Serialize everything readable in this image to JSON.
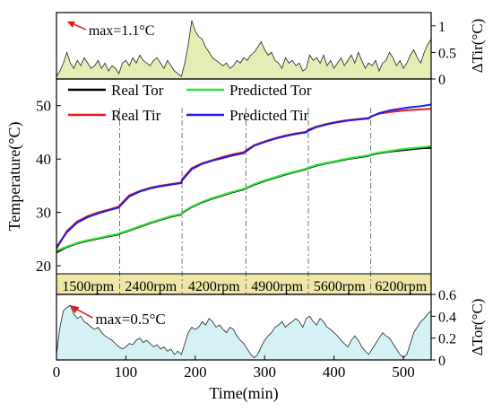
{
  "chart_data": [
    {
      "type": "area",
      "ylabel": "ΔTir(°C)",
      "ylim": [
        0,
        1.25
      ],
      "yticks": [
        0.0,
        0.5,
        1.0
      ],
      "fill_color": "#e3eeb4",
      "annotation": {
        "text": "max=1.1°C",
        "x": 14,
        "y": 1.1,
        "color": "#e0191b"
      },
      "x": [
        0,
        5,
        10,
        15,
        20,
        25,
        30,
        35,
        40,
        45,
        50,
        55,
        60,
        65,
        70,
        75,
        80,
        85,
        90,
        95,
        100,
        105,
        110,
        115,
        120,
        125,
        130,
        135,
        140,
        145,
        150,
        155,
        160,
        165,
        170,
        175,
        180,
        185,
        190,
        195,
        200,
        205,
        210,
        215,
        220,
        225,
        230,
        235,
        240,
        245,
        250,
        255,
        260,
        265,
        270,
        275,
        280,
        285,
        290,
        295,
        300,
        305,
        310,
        315,
        320,
        325,
        330,
        335,
        340,
        345,
        350,
        355,
        360,
        365,
        370,
        375,
        380,
        385,
        390,
        395,
        400,
        405,
        410,
        415,
        420,
        425,
        430,
        435,
        440,
        445,
        450,
        455,
        460,
        465,
        470,
        475,
        480,
        485,
        490,
        495,
        500,
        505,
        510,
        515,
        520,
        525,
        530,
        535,
        540
      ],
      "values": [
        0.05,
        0.15,
        0.3,
        0.5,
        0.3,
        0.2,
        0.35,
        0.25,
        0.4,
        0.3,
        0.2,
        0.25,
        0.35,
        0.2,
        0.3,
        0.15,
        0.25,
        0.2,
        0.1,
        0.3,
        0.35,
        0.25,
        0.4,
        0.3,
        0.45,
        0.35,
        0.3,
        0.25,
        0.35,
        0.4,
        0.3,
        0.2,
        0.35,
        0.25,
        0.15,
        0.1,
        0.05,
        0.3,
        0.65,
        1.1,
        0.9,
        0.8,
        0.75,
        0.6,
        0.5,
        0.4,
        0.35,
        0.3,
        0.25,
        0.3,
        0.2,
        0.25,
        0.35,
        0.3,
        0.4,
        0.35,
        0.45,
        0.5,
        0.6,
        0.7,
        0.55,
        0.45,
        0.5,
        0.35,
        0.3,
        0.2,
        0.4,
        0.3,
        0.35,
        0.25,
        0.3,
        0.15,
        0.2,
        0.45,
        0.35,
        0.4,
        0.3,
        0.45,
        0.25,
        0.35,
        0.2,
        0.3,
        0.4,
        0.25,
        0.35,
        0.45,
        0.3,
        0.5,
        0.35,
        0.2,
        0.3,
        0.25,
        0.35,
        0.15,
        0.3,
        0.35,
        0.5,
        0.4,
        0.25,
        0.35,
        0.2,
        0.3,
        0.45,
        0.55,
        0.4,
        0.3,
        0.5,
        0.65,
        0.75
      ]
    },
    {
      "type": "line",
      "xlim": [
        0,
        540
      ],
      "ylabel": "Temperature(°C)",
      "ylim": [
        18.5,
        55
      ],
      "yticks": [
        20,
        30,
        40,
        50
      ],
      "legend_placement": "top-left",
      "speed_bands": [
        "1500rpm",
        "2400rpm",
        "4200rpm",
        "4900rpm",
        "5600rpm",
        "6200rpm"
      ],
      "band_boundaries": [
        0,
        91,
        181,
        273,
        363,
        453,
        540
      ],
      "band_color": "#f0e6a6",
      "x": [
        0,
        15,
        30,
        45,
        60,
        75,
        90,
        91,
        105,
        120,
        135,
        150,
        165,
        180,
        181,
        195,
        210,
        225,
        240,
        255,
        270,
        273,
        285,
        300,
        315,
        330,
        345,
        360,
        363,
        375,
        390,
        405,
        420,
        435,
        450,
        453,
        465,
        480,
        495,
        510,
        525,
        540
      ],
      "series": [
        {
          "name": "Real Tor",
          "color": "#000000",
          "values": [
            22.5,
            23.5,
            24.2,
            24.7,
            25.1,
            25.5,
            25.9,
            26.0,
            26.6,
            27.3,
            28.0,
            28.6,
            29.2,
            29.6,
            29.9,
            31.0,
            31.9,
            32.6,
            33.2,
            33.8,
            34.3,
            34.5,
            35.2,
            35.9,
            36.5,
            37.1,
            37.6,
            38.1,
            38.3,
            38.8,
            39.2,
            39.6,
            40.0,
            40.3,
            40.6,
            40.8,
            41.1,
            41.4,
            41.6,
            41.8,
            42.0,
            42.1
          ]
        },
        {
          "name": "Predicted Tor",
          "color": "#2ee62e",
          "values": [
            22.8,
            23.6,
            24.3,
            24.8,
            25.2,
            25.6,
            26.0,
            26.1,
            26.7,
            27.4,
            28.1,
            28.7,
            29.3,
            29.7,
            30.0,
            31.1,
            32.0,
            32.7,
            33.3,
            33.9,
            34.4,
            34.6,
            35.3,
            36.0,
            36.6,
            37.2,
            37.7,
            38.2,
            38.4,
            38.9,
            39.3,
            39.7,
            40.1,
            40.4,
            40.7,
            40.9,
            41.2,
            41.5,
            41.8,
            42.0,
            42.2,
            42.4
          ]
        },
        {
          "name": "Real Tir",
          "color": "#e31a1c",
          "values": [
            23.2,
            26.5,
            28.3,
            29.3,
            30.0,
            30.5,
            31.1,
            31.3,
            33.2,
            34.0,
            34.6,
            35.0,
            35.3,
            35.6,
            36.2,
            38.3,
            39.2,
            39.8,
            40.4,
            40.9,
            41.3,
            41.6,
            42.6,
            43.3,
            43.9,
            44.4,
            44.8,
            45.1,
            45.5,
            46.1,
            46.6,
            47.0,
            47.3,
            47.5,
            47.7,
            48.0,
            48.5,
            48.8,
            49.0,
            49.2,
            49.3,
            49.4
          ]
        },
        {
          "name": "Predicted Tir",
          "color": "#1c1ce6",
          "values": [
            23.5,
            26.3,
            28.1,
            29.1,
            29.8,
            30.4,
            30.9,
            31.1,
            33.0,
            33.9,
            34.5,
            34.9,
            35.2,
            35.5,
            36.0,
            38.1,
            39.1,
            39.7,
            40.2,
            40.7,
            41.1,
            41.4,
            42.5,
            43.2,
            43.8,
            44.3,
            44.7,
            45.0,
            45.3,
            46.0,
            46.5,
            46.9,
            47.2,
            47.4,
            47.6,
            47.9,
            48.6,
            49.1,
            49.4,
            49.7,
            49.9,
            50.2
          ]
        }
      ]
    },
    {
      "type": "area",
      "xlabel": "Time(min)",
      "xlim": [
        0,
        540
      ],
      "xticks": [
        0,
        100,
        200,
        300,
        400,
        500
      ],
      "ylabel": "ΔTor(°C)",
      "ylim": [
        0,
        0.6
      ],
      "yticks": [
        0.0,
        0.2,
        0.4,
        0.6
      ],
      "fill_color": "#d4f2f6",
      "annotation": {
        "text": "max=0.5°C",
        "x": 20,
        "y": 0.5,
        "color": "#e0191b"
      },
      "x": [
        0,
        5,
        10,
        15,
        20,
        25,
        30,
        35,
        40,
        45,
        50,
        55,
        60,
        65,
        70,
        75,
        80,
        85,
        90,
        95,
        100,
        105,
        110,
        115,
        120,
        125,
        130,
        135,
        140,
        145,
        150,
        155,
        160,
        165,
        170,
        175,
        180,
        185,
        190,
        195,
        200,
        205,
        210,
        215,
        220,
        225,
        230,
        235,
        240,
        245,
        250,
        255,
        260,
        265,
        270,
        275,
        280,
        285,
        290,
        295,
        300,
        305,
        310,
        315,
        320,
        325,
        330,
        335,
        340,
        345,
        350,
        355,
        360,
        365,
        370,
        375,
        380,
        385,
        390,
        395,
        400,
        405,
        410,
        415,
        420,
        425,
        430,
        435,
        440,
        445,
        450,
        455,
        460,
        465,
        470,
        475,
        480,
        485,
        490,
        495,
        500,
        505,
        510,
        515,
        520,
        525,
        530,
        535,
        540
      ],
      "values": [
        0.05,
        0.3,
        0.45,
        0.48,
        0.5,
        0.42,
        0.38,
        0.4,
        0.35,
        0.33,
        0.3,
        0.28,
        0.3,
        0.25,
        0.22,
        0.2,
        0.18,
        0.15,
        0.12,
        0.1,
        0.12,
        0.15,
        0.14,
        0.18,
        0.2,
        0.16,
        0.18,
        0.15,
        0.12,
        0.14,
        0.1,
        0.12,
        0.08,
        0.1,
        0.05,
        0.08,
        0.05,
        0.15,
        0.25,
        0.3,
        0.28,
        0.3,
        0.35,
        0.32,
        0.38,
        0.35,
        0.3,
        0.32,
        0.28,
        0.25,
        0.3,
        0.28,
        0.22,
        0.18,
        0.15,
        0.1,
        0.05,
        0.02,
        0.05,
        0.12,
        0.18,
        0.22,
        0.25,
        0.3,
        0.32,
        0.35,
        0.3,
        0.33,
        0.35,
        0.38,
        0.35,
        0.3,
        0.38,
        0.4,
        0.35,
        0.32,
        0.38,
        0.35,
        0.3,
        0.28,
        0.25,
        0.22,
        0.18,
        0.15,
        0.12,
        0.18,
        0.22,
        0.18,
        0.12,
        0.08,
        0.05,
        0.1,
        0.15,
        0.2,
        0.25,
        0.22,
        0.2,
        0.15,
        0.1,
        0.05,
        0.02,
        0.05,
        0.15,
        0.25,
        0.3,
        0.35,
        0.38,
        0.42,
        0.45
      ]
    }
  ]
}
